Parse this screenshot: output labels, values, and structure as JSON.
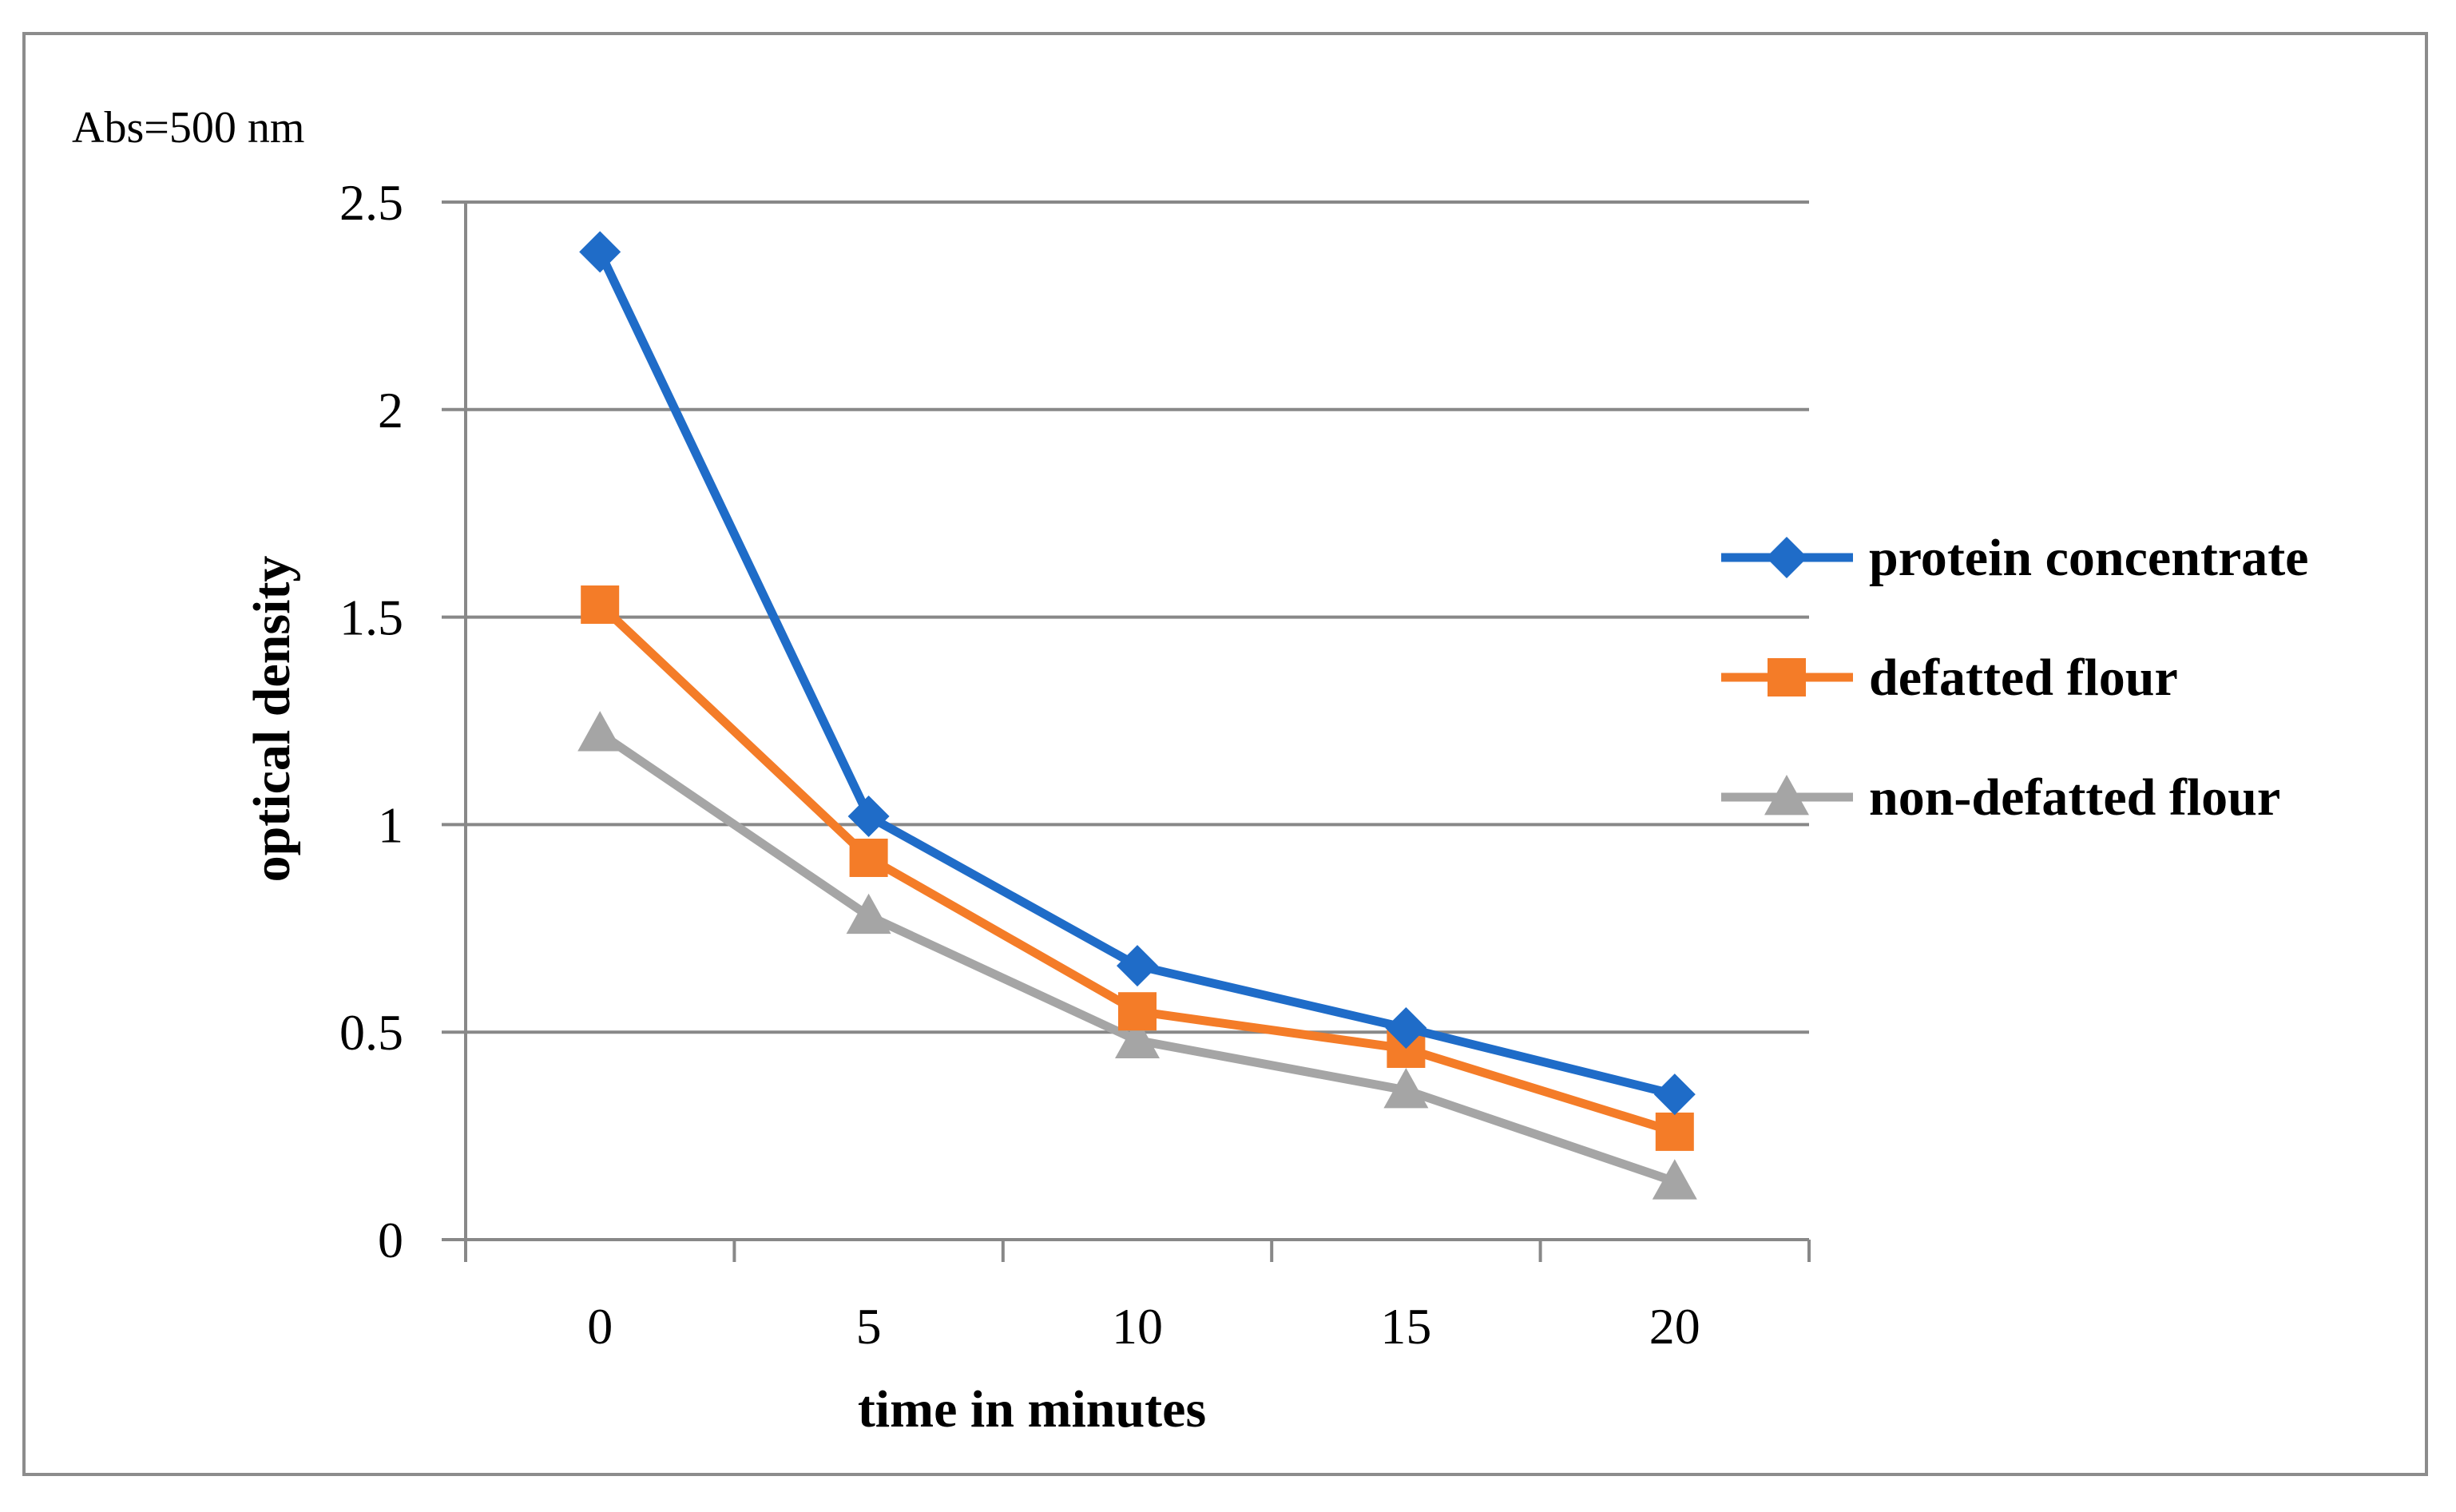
{
  "chart_data": {
    "type": "line",
    "unit_label": "Abs=500 nm",
    "title": "",
    "xlabel": "time in minutes",
    "ylabel": "optical density",
    "categories": [
      "0",
      "5",
      "10",
      "15",
      "20"
    ],
    "y_ticks": [
      "0",
      "0.5",
      "1",
      "1.5",
      "2",
      "2.5"
    ],
    "ylim": [
      0,
      2.5
    ],
    "grid": true,
    "legend_position": "right",
    "series": [
      {
        "name": "protein concentrate",
        "marker": "diamond",
        "color": "#1f6cc8",
        "values": [
          2.38,
          1.02,
          0.66,
          0.51,
          0.35
        ]
      },
      {
        "name": "defatted flour",
        "marker": "square",
        "color": "#f47c28",
        "values": [
          1.53,
          0.92,
          0.55,
          0.46,
          0.26
        ]
      },
      {
        "name": "non-defatted flour",
        "marker": "triangle",
        "color": "#a5a5a5",
        "values": [
          1.22,
          0.78,
          0.48,
          0.36,
          0.14
        ]
      }
    ]
  }
}
